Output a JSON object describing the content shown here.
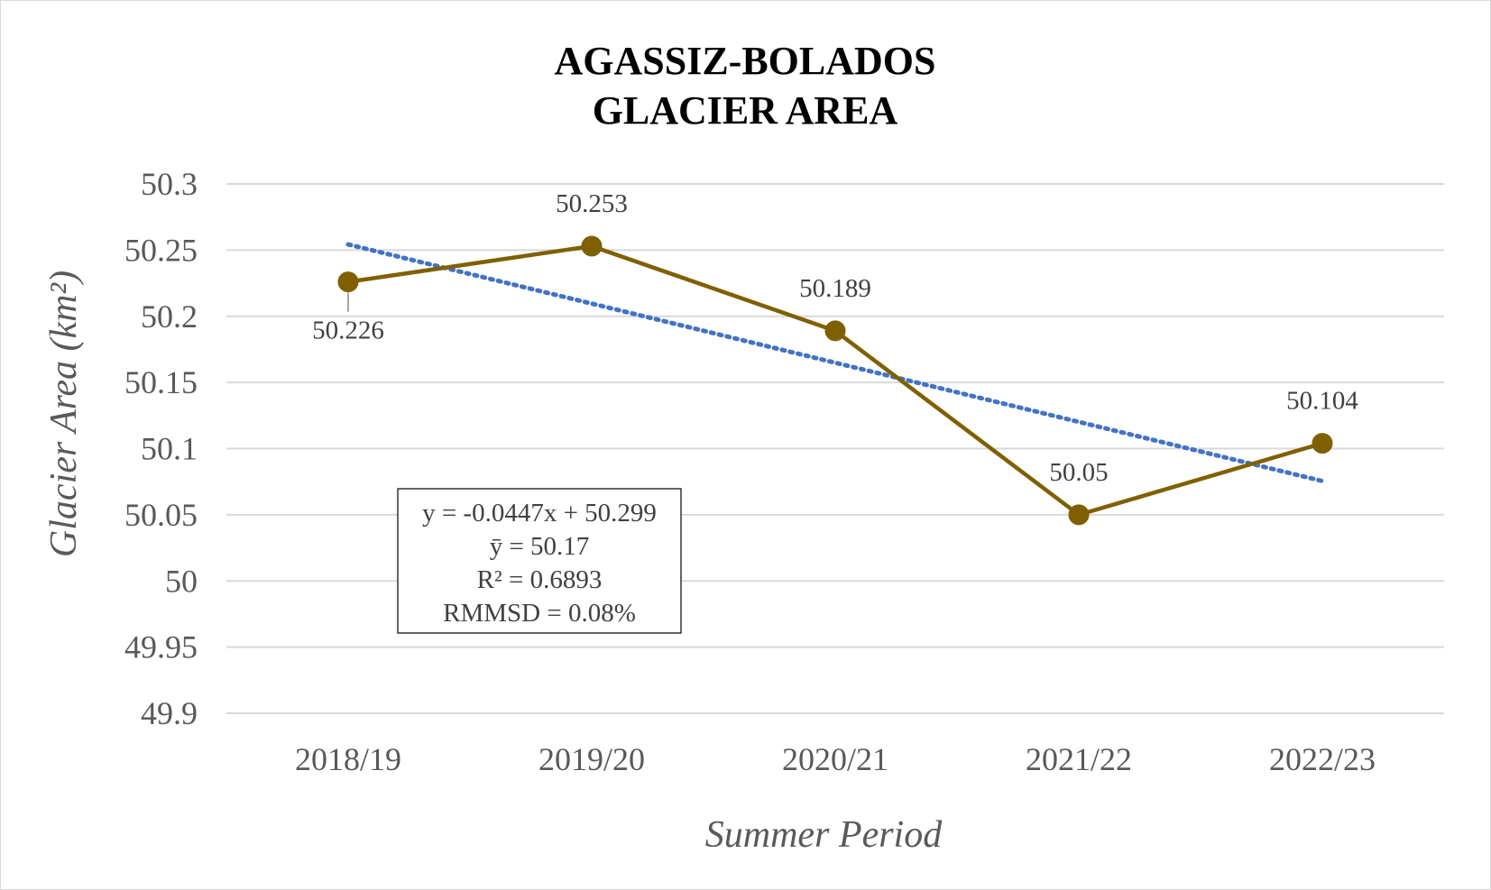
{
  "chart_data": {
    "type": "line",
    "title_lines": [
      "AGASSIZ-BOLADOS",
      "GLACIER AREA"
    ],
    "xlabel": "Summer Period",
    "ylabel": "Glacier Area (km²)",
    "categories": [
      "2018/19",
      "2019/20",
      "2020/21",
      "2021/22",
      "2022/23"
    ],
    "series": [
      {
        "values": [
          50.226,
          50.253,
          50.189,
          50.05,
          50.104
        ],
        "color": "#7f6000"
      }
    ],
    "data_labels": [
      "50.226",
      "50.253",
      "50.189",
      "50.05",
      "50.104"
    ],
    "trendline": {
      "type": "linear",
      "slope": -0.0447,
      "intercept": 50.299,
      "style": "dotted",
      "color": "#4472c4"
    },
    "ylim": [
      49.9,
      50.3
    ],
    "yticks": [
      49.9,
      49.95,
      50,
      50.05,
      50.1,
      50.15,
      50.2,
      50.25,
      50.3
    ],
    "ytick_labels": [
      "49.9",
      "49.95",
      "50",
      "50.05",
      "50.1",
      "50.15",
      "50.2",
      "50.25",
      "50.3"
    ],
    "grid": true,
    "annotation": {
      "lines": [
        "y = -0.0447x + 50.299",
        "ȳ = 50.17",
        "R² = 0.6893",
        "RMMSD = 0.08%"
      ]
    }
  }
}
